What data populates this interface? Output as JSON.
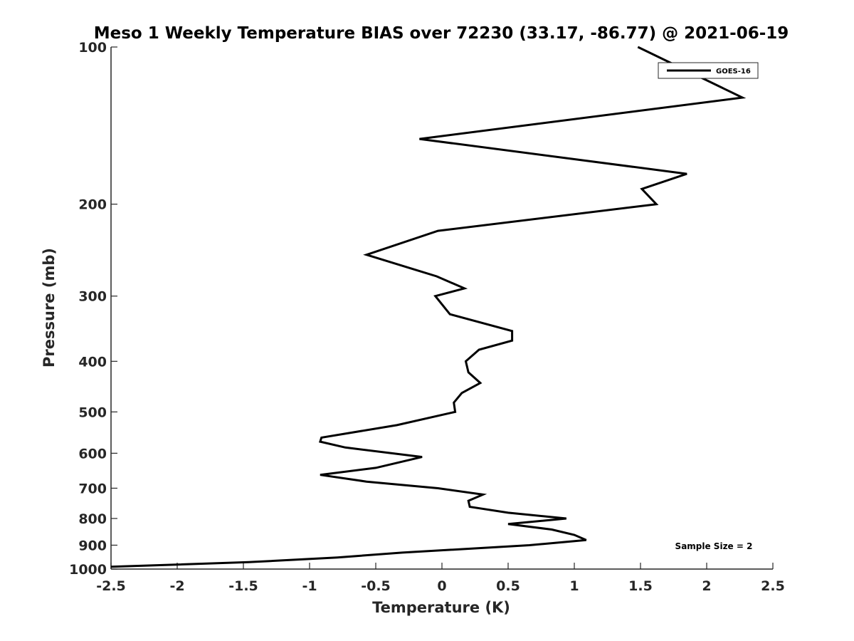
{
  "chart_data": {
    "type": "line",
    "title": "Meso 1 Weekly Temperature BIAS over 72230 (33.17, -86.77) @ 2021-06-19",
    "xlabel": "Temperature (K)",
    "ylabel": "Pressure (mb)",
    "xlim": [
      -2.5,
      2.5
    ],
    "ylim": [
      100,
      1000
    ],
    "y_scale": "log",
    "y_reversed": true,
    "x_ticks": [
      -2.5,
      -2,
      -1.5,
      -1,
      -0.5,
      0,
      0.5,
      1,
      1.5,
      2,
      2.5
    ],
    "x_tick_labels": [
      "-2.5",
      "-2",
      "-1.5",
      "-1",
      "-0.5",
      "0",
      "0.5",
      "1",
      "1.5",
      "2",
      "2.5"
    ],
    "y_ticks": [
      100,
      200,
      300,
      400,
      500,
      600,
      700,
      800,
      900,
      1000
    ],
    "y_tick_labels": [
      "100",
      "200",
      "300",
      "400",
      "500",
      "600",
      "700",
      "800",
      "900",
      "1000"
    ],
    "grid": false,
    "legend_position": "top-right",
    "annotation": "Sample Size = 2",
    "series": [
      {
        "name": "GOES-16",
        "color": "#000000",
        "points": [
          [
            1.48,
            100
          ],
          [
            2.27,
            125
          ],
          [
            -0.17,
            150
          ],
          [
            1.85,
            175
          ],
          [
            1.51,
            187
          ],
          [
            1.62,
            200
          ],
          [
            -0.03,
            225
          ],
          [
            -0.57,
            250
          ],
          [
            -0.04,
            275
          ],
          [
            0.17,
            290
          ],
          [
            -0.05,
            300
          ],
          [
            0.06,
            325
          ],
          [
            0.53,
            350
          ],
          [
            0.53,
            365
          ],
          [
            0.28,
            380
          ],
          [
            0.18,
            400
          ],
          [
            0.2,
            420
          ],
          [
            0.29,
            440
          ],
          [
            0.15,
            460
          ],
          [
            0.09,
            480
          ],
          [
            0.1,
            500
          ],
          [
            -0.34,
            530
          ],
          [
            -0.91,
            560
          ],
          [
            -0.92,
            570
          ],
          [
            -0.73,
            585
          ],
          [
            -0.15,
            610
          ],
          [
            -0.5,
            640
          ],
          [
            -0.92,
            660
          ],
          [
            -0.57,
            680
          ],
          [
            -0.03,
            700
          ],
          [
            0.31,
            720
          ],
          [
            0.2,
            740
          ],
          [
            0.21,
            760
          ],
          [
            0.5,
            780
          ],
          [
            0.94,
            800
          ],
          [
            0.5,
            820
          ],
          [
            0.83,
            840
          ],
          [
            1.0,
            860
          ],
          [
            1.09,
            880
          ],
          [
            0.66,
            900
          ],
          [
            -0.3,
            930
          ],
          [
            -0.79,
            950
          ],
          [
            -1.46,
            970
          ],
          [
            -2.5,
            990
          ]
        ]
      }
    ]
  }
}
